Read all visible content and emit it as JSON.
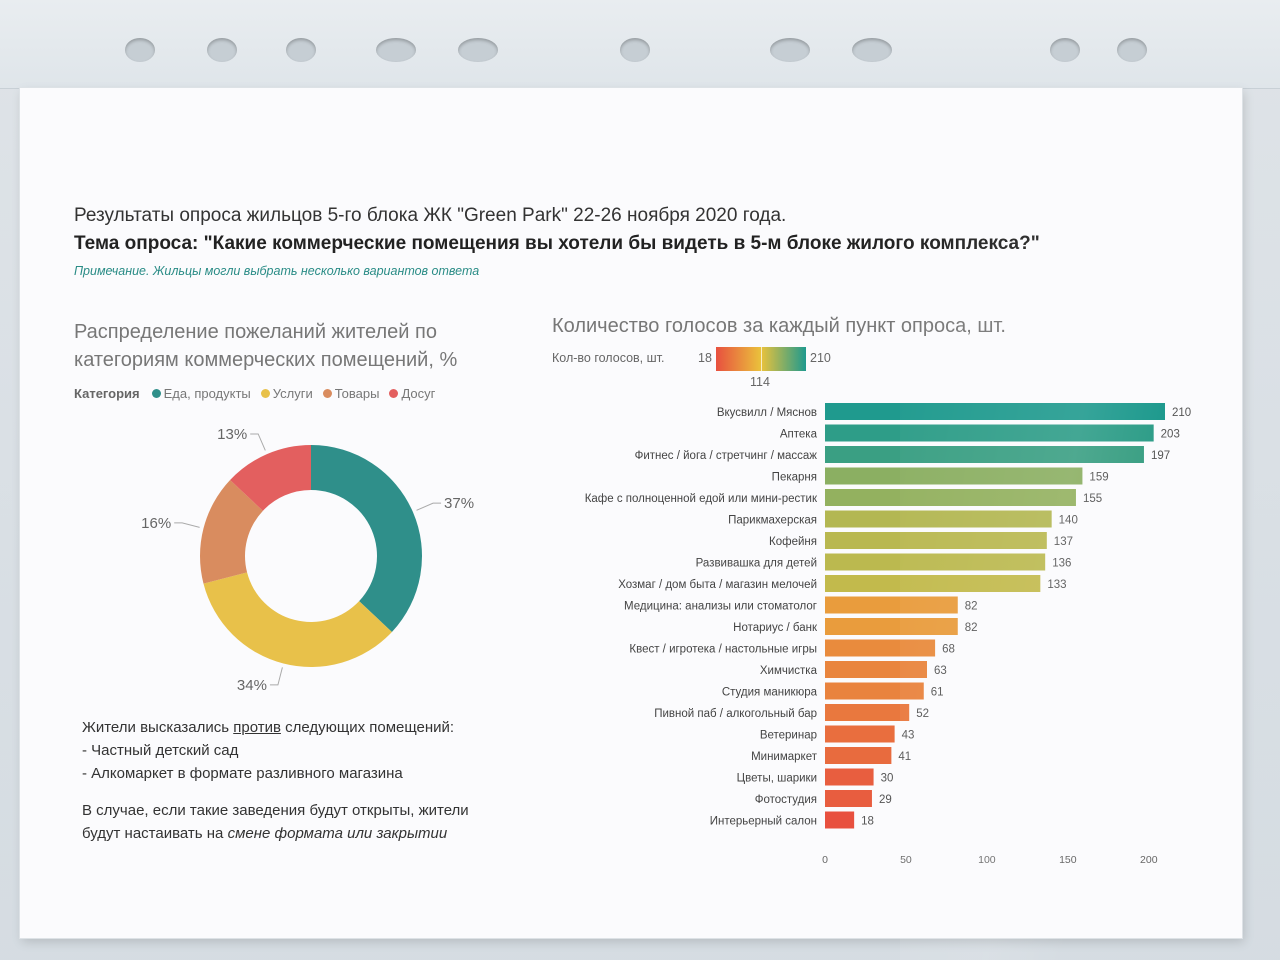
{
  "header": {
    "title": "Результаты опроса жильцов 5-го блока ЖК \"Green Park\" 22-26 ноября 2020 года.",
    "subtitle": "Тема опроса: \"Какие коммерческие помещения вы хотели бы видеть в 5-м блоке жилого комплекса?\"",
    "note": "Примечание. Жильцы могли выбрать несколько вариантов ответа"
  },
  "colors": {
    "teal": "#2f8f8a",
    "yellow": "#e8c14a",
    "orange": "#d98c5f",
    "red": "#e35f5f"
  },
  "chart_data": [
    {
      "type": "pie",
      "title": "Распределение пожеланий жителей по категориям коммерческих помещений, %",
      "legend_title": "Категория",
      "legend_placement": "top",
      "categories": [
        "Еда, продукты",
        "Услуги",
        "Товары",
        "Досуг"
      ],
      "values": [
        37,
        34,
        16,
        13
      ],
      "labels": [
        "37%",
        "34%",
        "16%",
        "13%"
      ],
      "colors": [
        "#2f8f8a",
        "#e8c14a",
        "#d98c5f",
        "#e35f5f"
      ],
      "donut": true
    },
    {
      "type": "bar",
      "orientation": "horizontal",
      "title": "Количество голосов за каждый пункт опроса, шт.",
      "color_legend": {
        "label": "Кол-во голосов, шт.",
        "min": "18",
        "mid": "114",
        "max": "210"
      },
      "categories": [
        "Вкусвилл / Мяснов",
        "Аптека",
        "Фитнес / йога / стретчинг / массаж",
        "Пекарня",
        "Кафе с полноценной едой или мини-рестик",
        "Парикмахерская",
        "Кофейня",
        "Развивашка для детей",
        "Хозмаг / дом быта / магазин мелочей",
        "Медицина: анализы или стоматолог",
        "Нотариус / банк",
        "Квест / игротека / настольные игры",
        "Химчистка",
        "Студия маникюра",
        "Пивной паб / алкогольный бар",
        "Ветеринар",
        "Минимаркет",
        "Цветы, шарики",
        "Фотостудия",
        "Интерьерный салон"
      ],
      "values": [
        210,
        203,
        197,
        159,
        155,
        140,
        137,
        136,
        133,
        82,
        82,
        68,
        63,
        61,
        52,
        43,
        41,
        30,
        29,
        18
      ],
      "xlim": [
        0,
        210
      ],
      "xticks": [
        "0",
        "50",
        "100",
        "150",
        "200"
      ],
      "xtick_values": [
        0,
        50,
        100,
        150,
        200
      ],
      "color_scale": [
        "#e8503f",
        "#eac23c",
        "#1f9a8e"
      ],
      "grid": false
    }
  ],
  "against": {
    "intro_before": "Жители высказались ",
    "intro_keyword": "против",
    "intro_after": " следующих помещений:",
    "items": [
      "- Частный детский сад",
      "- Алкомаркет в формате разливного магазина"
    ],
    "conclusion_1": "В случае, если такие заведения будут открыты, жители",
    "conclusion_2_before": "будут настаивать на ",
    "conclusion_2_emph": "смене формата или закрытии"
  }
}
